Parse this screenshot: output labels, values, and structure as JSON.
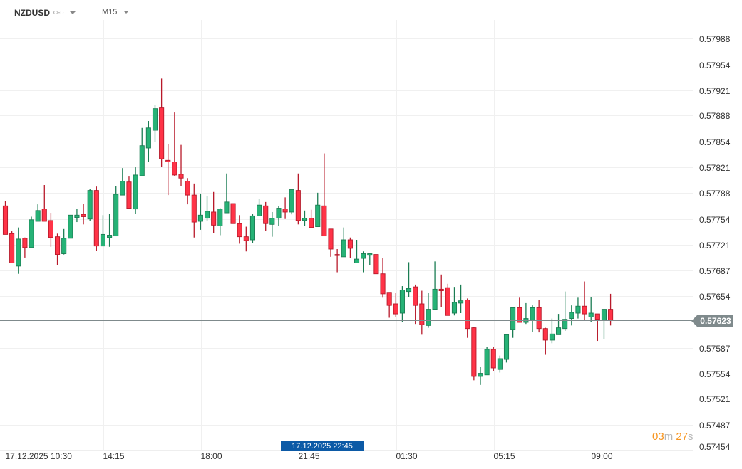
{
  "header": {
    "symbol": "NZDUSD",
    "instrument_type": "CFD",
    "timeframe": "M15"
  },
  "crosshair": {
    "time_label": "17.12.2025 22:45"
  },
  "current_price": {
    "label": "0.57623",
    "value": 0.57623
  },
  "timer": {
    "minutes": "03",
    "m_unit": "m",
    "seconds": "27",
    "s_unit": "s"
  },
  "colors": {
    "up": "#26b276",
    "up_border": "#1b7d53",
    "down": "#ff3347",
    "down_border": "#b8192a",
    "crosshair": "#1f4e80",
    "time_badge": "#0c5aa6",
    "timer": "#f7941d"
  },
  "chart_data": {
    "type": "candlestick",
    "interval": "15m",
    "first_bar_time": "17.12.2025 10:30",
    "ylim": [
      0.57454,
      0.57988
    ],
    "grid": true,
    "y_ticks": [
      "0.57988",
      "0.57954",
      "0.57921",
      "0.57888",
      "0.57854",
      "0.57821",
      "0.57788",
      "0.57754",
      "0.57721",
      "0.57687",
      "0.57654",
      "0.57587",
      "0.57554",
      "0.57521",
      "0.57487",
      "0.57454"
    ],
    "x_ticks": [
      {
        "bar": 0,
        "label": "17.12.2025  10:30"
      },
      {
        "bar": 15,
        "label": "14:15"
      },
      {
        "bar": 30,
        "label": "18:00"
      },
      {
        "bar": 45,
        "label": "21:45"
      },
      {
        "bar": 60,
        "label": "01:30"
      },
      {
        "bar": 75,
        "label": "05:15"
      },
      {
        "bar": 90,
        "label": "09:00"
      }
    ],
    "crosshair_bar": 49,
    "ohlc": [
      [
        0.57771,
        0.57777,
        0.57734,
        0.57734
      ],
      [
        0.57735,
        0.57738,
        0.57697,
        0.57697
      ],
      [
        0.57693,
        0.57743,
        0.57683,
        0.57728
      ],
      [
        0.57729,
        0.5773,
        0.57704,
        0.57717
      ],
      [
        0.57717,
        0.57757,
        0.57717,
        0.57753
      ],
      [
        0.57751,
        0.57773,
        0.57751,
        0.57765
      ],
      [
        0.57767,
        0.57798,
        0.57751,
        0.57751
      ],
      [
        0.57752,
        0.57762,
        0.57718,
        0.5773
      ],
      [
        0.57731,
        0.57735,
        0.57694,
        0.57708
      ],
      [
        0.57709,
        0.57741,
        0.57708,
        0.57729
      ],
      [
        0.57729,
        0.57759,
        0.57729,
        0.57759
      ],
      [
        0.57756,
        0.57767,
        0.5775,
        0.57759
      ],
      [
        0.5776,
        0.57774,
        0.57747,
        0.57757
      ],
      [
        0.57754,
        0.57793,
        0.57751,
        0.57791
      ],
      [
        0.57791,
        0.57796,
        0.57713,
        0.57719
      ],
      [
        0.57719,
        0.57759,
        0.57719,
        0.57734
      ],
      [
        0.5773,
        0.57761,
        0.57718,
        0.57733
      ],
      [
        0.57732,
        0.57797,
        0.57732,
        0.57786
      ],
      [
        0.57785,
        0.5782,
        0.57785,
        0.57803
      ],
      [
        0.57802,
        0.57809,
        0.57768,
        0.57768
      ],
      [
        0.57767,
        0.57821,
        0.57761,
        0.57811
      ],
      [
        0.5781,
        0.57872,
        0.5781,
        0.57849
      ],
      [
        0.57846,
        0.57881,
        0.57828,
        0.57872
      ],
      [
        0.57869,
        0.57902,
        0.57854,
        0.57897
      ],
      [
        0.57898,
        0.57936,
        0.57822,
        0.57832
      ],
      [
        0.5783,
        0.57851,
        0.57785,
        0.57828
      ],
      [
        0.57828,
        0.57892,
        0.5781,
        0.57811
      ],
      [
        0.57812,
        0.5785,
        0.57797,
        0.57807
      ],
      [
        0.57803,
        0.57807,
        0.57773,
        0.57785
      ],
      [
        0.57785,
        0.578,
        0.5773,
        0.5775
      ],
      [
        0.57751,
        0.57787,
        0.5774,
        0.57759
      ],
      [
        0.57755,
        0.57784,
        0.57751,
        0.57764
      ],
      [
        0.57763,
        0.57789,
        0.57736,
        0.57746
      ],
      [
        0.57745,
        0.57768,
        0.57733,
        0.57767
      ],
      [
        0.57762,
        0.57813,
        0.57762,
        0.57776
      ],
      [
        0.57774,
        0.57774,
        0.57748,
        0.57748
      ],
      [
        0.57748,
        0.57759,
        0.57722,
        0.57731
      ],
      [
        0.57731,
        0.57744,
        0.57712,
        0.57726
      ],
      [
        0.57727,
        0.57761,
        0.57723,
        0.57758
      ],
      [
        0.57758,
        0.5778,
        0.57758,
        0.57772
      ],
      [
        0.57771,
        0.57776,
        0.57739,
        0.57748
      ],
      [
        0.57747,
        0.57763,
        0.57731,
        0.57755
      ],
      [
        0.57755,
        0.57771,
        0.57745,
        0.57768
      ],
      [
        0.57767,
        0.57782,
        0.57754,
        0.57763
      ],
      [
        0.57763,
        0.57792,
        0.5776,
        0.57792
      ],
      [
        0.57791,
        0.57813,
        0.57747,
        0.57752
      ],
      [
        0.57752,
        0.57765,
        0.57745,
        0.57755
      ],
      [
        0.57755,
        0.57766,
        0.57743,
        0.57743
      ],
      [
        0.57744,
        0.57788,
        0.57744,
        0.57772
      ],
      [
        0.57771,
        0.57839,
        0.57732,
        0.57732
      ],
      [
        0.57741,
        0.57741,
        0.57705,
        0.57715
      ],
      [
        0.57708,
        0.57715,
        0.57685,
        0.57707
      ],
      [
        0.57705,
        0.57743,
        0.57705,
        0.57727
      ],
      [
        0.57727,
        0.5773,
        0.57703,
        0.57716
      ],
      [
        0.57697,
        0.57727,
        0.57697,
        0.57702
      ],
      [
        0.57703,
        0.57712,
        0.57685,
        0.57709
      ],
      [
        0.57707,
        0.57709,
        0.57694,
        0.57709
      ],
      [
        0.57708,
        0.57708,
        0.57683,
        0.57683
      ],
      [
        0.57683,
        0.57703,
        0.57652,
        0.57657
      ],
      [
        0.57659,
        0.57659,
        0.57626,
        0.57642
      ],
      [
        0.57644,
        0.57658,
        0.57627,
        0.57631
      ],
      [
        0.57632,
        0.57667,
        0.5762,
        0.57662
      ],
      [
        0.5766,
        0.57698,
        0.57653,
        0.57664
      ],
      [
        0.57666,
        0.57669,
        0.57618,
        0.57642
      ],
      [
        0.57644,
        0.57661,
        0.57604,
        0.57617
      ],
      [
        0.57616,
        0.57658,
        0.57613,
        0.57637
      ],
      [
        0.57637,
        0.57699,
        0.57637,
        0.57663
      ],
      [
        0.57663,
        0.57682,
        0.5764,
        0.57661
      ],
      [
        0.57665,
        0.5767,
        0.57629,
        0.57629
      ],
      [
        0.57632,
        0.57666,
        0.57629,
        0.57646
      ],
      [
        0.57645,
        0.57669,
        0.57632,
        0.57648
      ],
      [
        0.57649,
        0.57651,
        0.576,
        0.57612
      ],
      [
        0.57613,
        0.57614,
        0.57545,
        0.5755
      ],
      [
        0.5755,
        0.57562,
        0.57539,
        0.57554
      ],
      [
        0.57552,
        0.57588,
        0.57552,
        0.57585
      ],
      [
        0.57585,
        0.57588,
        0.57557,
        0.57561
      ],
      [
        0.57559,
        0.57577,
        0.57555,
        0.57573
      ],
      [
        0.57572,
        0.57604,
        0.57568,
        0.57604
      ],
      [
        0.57611,
        0.5764,
        0.576,
        0.57639
      ],
      [
        0.57639,
        0.57652,
        0.5762,
        0.5762
      ],
      [
        0.5762,
        0.57645,
        0.57618,
        0.57625
      ],
      [
        0.57623,
        0.57642,
        0.57608,
        0.57639
      ],
      [
        0.57639,
        0.57649,
        0.57607,
        0.57612
      ],
      [
        0.57612,
        0.57613,
        0.57578,
        0.57597
      ],
      [
        0.57597,
        0.57625,
        0.57593,
        0.57605
      ],
      [
        0.57604,
        0.57631,
        0.57604,
        0.57613
      ],
      [
        0.57612,
        0.5766,
        0.57609,
        0.57624
      ],
      [
        0.57625,
        0.57642,
        0.57616,
        0.57633
      ],
      [
        0.57632,
        0.57652,
        0.57625,
        0.57641
      ],
      [
        0.57641,
        0.57673,
        0.57623,
        0.57631
      ],
      [
        0.57627,
        0.57653,
        0.5762,
        0.57632
      ],
      [
        0.57631,
        0.57631,
        0.57596,
        0.57624
      ],
      [
        0.57623,
        0.57637,
        0.57598,
        0.57637
      ],
      [
        0.57637,
        0.57657,
        0.57616,
        0.57623
      ]
    ]
  }
}
